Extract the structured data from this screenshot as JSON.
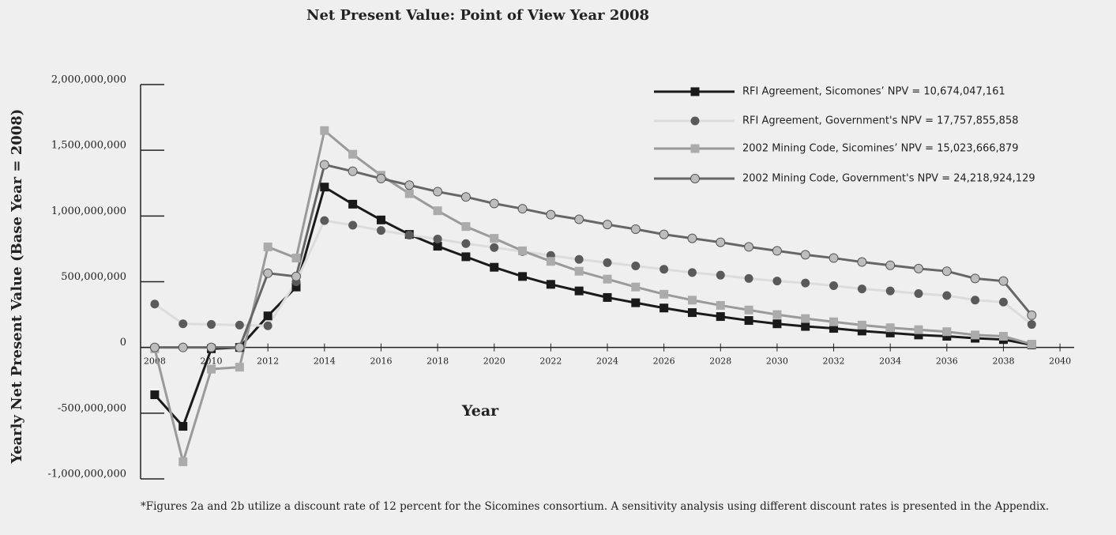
{
  "chart_data": {
    "type": "line",
    "title": "Net Present Value: Point of View Year 2008",
    "xlabel": "Year",
    "ylabel": "Yearly Net Present Value (Base Year = 2008)",
    "footnote": "*Figures 2a and 2b utilize a discount rate of 12 percent for the Sicomines consortium. A sensitivity analysis using different discount rates is presented in the Appendix.",
    "x": [
      2008,
      2009,
      2010,
      2011,
      2012,
      2013,
      2014,
      2015,
      2016,
      2017,
      2018,
      2019,
      2020,
      2021,
      2022,
      2023,
      2024,
      2025,
      2026,
      2027,
      2028,
      2029,
      2030,
      2031,
      2032,
      2033,
      2034,
      2035,
      2036,
      2037,
      2038,
      2039
    ],
    "xlim": [
      2007.5,
      2040.5
    ],
    "xticks": [
      2008,
      2010,
      2012,
      2014,
      2016,
      2018,
      2020,
      2022,
      2024,
      2026,
      2028,
      2030,
      2032,
      2034,
      2036,
      2038,
      2040
    ],
    "ylim": [
      -1000000000,
      2000000000
    ],
    "yticks": [
      {
        "value": 2000000000,
        "label": "2,000,000,000"
      },
      {
        "value": 1500000000,
        "label": "1,500,000,000"
      },
      {
        "value": 1000000000,
        "label": "1,000,000,000"
      },
      {
        "value": 500000000,
        "label": "500,000,000"
      },
      0,
      {
        "value": -500000000,
        "label": "-500,000,000"
      },
      {
        "value": -1000000000,
        "label": "-1,000,000,000"
      }
    ],
    "series": [
      {
        "name": "RFI Agreement, Sicomones’ NPV = 10,674,047,161",
        "color": "#1a1a1a",
        "marker": "square",
        "marker_color": "#1a1a1a",
        "values": [
          -360000000,
          -600000000,
          -10000000,
          0,
          240000000,
          460000000,
          1220000000,
          1090000000,
          970000000,
          860000000,
          770000000,
          690000000,
          610000000,
          540000000,
          480000000,
          430000000,
          380000000,
          340000000,
          300000000,
          265000000,
          235000000,
          205000000,
          180000000,
          160000000,
          145000000,
          125000000,
          110000000,
          95000000,
          85000000,
          70000000,
          60000000,
          20000000
        ]
      },
      {
        "name": "RFI Agreement, Government's NPV = 17,757,855,858",
        "color": "#dcdcdc",
        "marker": "circle",
        "marker_color": "#5a5a5a",
        "values": [
          330000000,
          180000000,
          175000000,
          170000000,
          165000000,
          500000000,
          965000000,
          930000000,
          890000000,
          855000000,
          825000000,
          790000000,
          760000000,
          730000000,
          700000000,
          670000000,
          645000000,
          620000000,
          595000000,
          570000000,
          550000000,
          525000000,
          505000000,
          490000000,
          470000000,
          445000000,
          430000000,
          410000000,
          395000000,
          360000000,
          345000000,
          175000000
        ]
      },
      {
        "name": "2002 Mining Code, Sicomines’ NPV = 15,023,666,879",
        "color": "#9a9a9a",
        "marker": "square",
        "marker_color": "#ababab",
        "values": [
          -10000000,
          -870000000,
          -165000000,
          -150000000,
          765000000,
          680000000,
          1650000000,
          1470000000,
          1310000000,
          1170000000,
          1040000000,
          920000000,
          830000000,
          735000000,
          655000000,
          580000000,
          520000000,
          460000000,
          405000000,
          360000000,
          320000000,
          285000000,
          250000000,
          220000000,
          195000000,
          170000000,
          150000000,
          135000000,
          120000000,
          95000000,
          85000000,
          25000000
        ]
      },
      {
        "name": "2002 Mining Code, Government's NPV = 24,218,924,129",
        "color": "#666666",
        "marker": "circle",
        "marker_color": "#bdbdbd",
        "values": [
          0,
          0,
          0,
          0,
          565000000,
          540000000,
          1390000000,
          1340000000,
          1285000000,
          1235000000,
          1185000000,
          1145000000,
          1095000000,
          1055000000,
          1010000000,
          975000000,
          935000000,
          900000000,
          860000000,
          830000000,
          800000000,
          765000000,
          735000000,
          705000000,
          680000000,
          650000000,
          625000000,
          600000000,
          580000000,
          525000000,
          505000000,
          245000000
        ]
      }
    ]
  }
}
